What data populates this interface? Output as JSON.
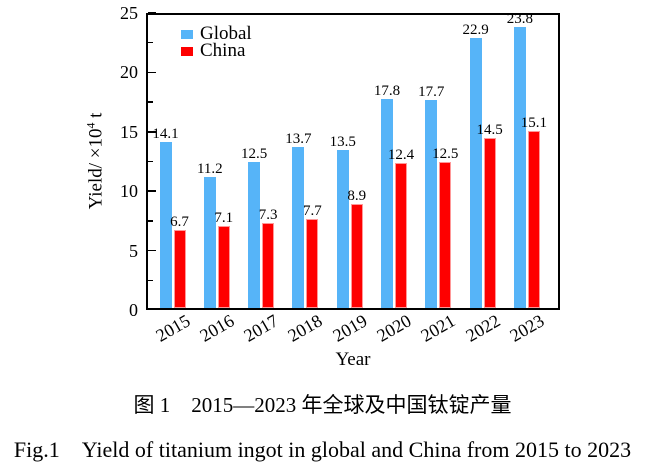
{
  "figure": {
    "caption_zh": "图 1　2015—2023 年全球及中国钛锭产量",
    "caption_en": "Fig.1　Yield of titanium ingot in global and China from 2015 to 2023"
  },
  "chart_data": {
    "type": "bar",
    "title": "",
    "categories": [
      "2015",
      "2016",
      "2017",
      "2018",
      "2019",
      "2020",
      "2021",
      "2022",
      "2023"
    ],
    "series": [
      {
        "name": "Global",
        "color": "#56B4F8",
        "edge_color": "#56B4F8",
        "values": [
          14.1,
          11.2,
          12.5,
          13.7,
          13.5,
          17.8,
          17.7,
          22.9,
          23.8
        ]
      },
      {
        "name": "China",
        "color": "#FE0000",
        "edge_color": "#FF9898",
        "values": [
          6.7,
          7.1,
          7.3,
          7.7,
          8.9,
          12.4,
          12.5,
          14.5,
          15.1
        ]
      }
    ],
    "xlabel": "Year",
    "ylabel": "Yield/ ×10⁴ t",
    "ylabel_parts": {
      "prefix": "Yield/ ×10",
      "superscript": "4",
      "suffix": " t"
    },
    "ylim": [
      0,
      25
    ],
    "y_major_ticks": [
      0,
      5,
      10,
      15,
      20,
      25
    ],
    "y_minor_step": 2.5,
    "bar_value_labels": true,
    "value_label_decimals": 1,
    "legend_position": "top-left",
    "grid": false,
    "axis_color": "#000000"
  }
}
